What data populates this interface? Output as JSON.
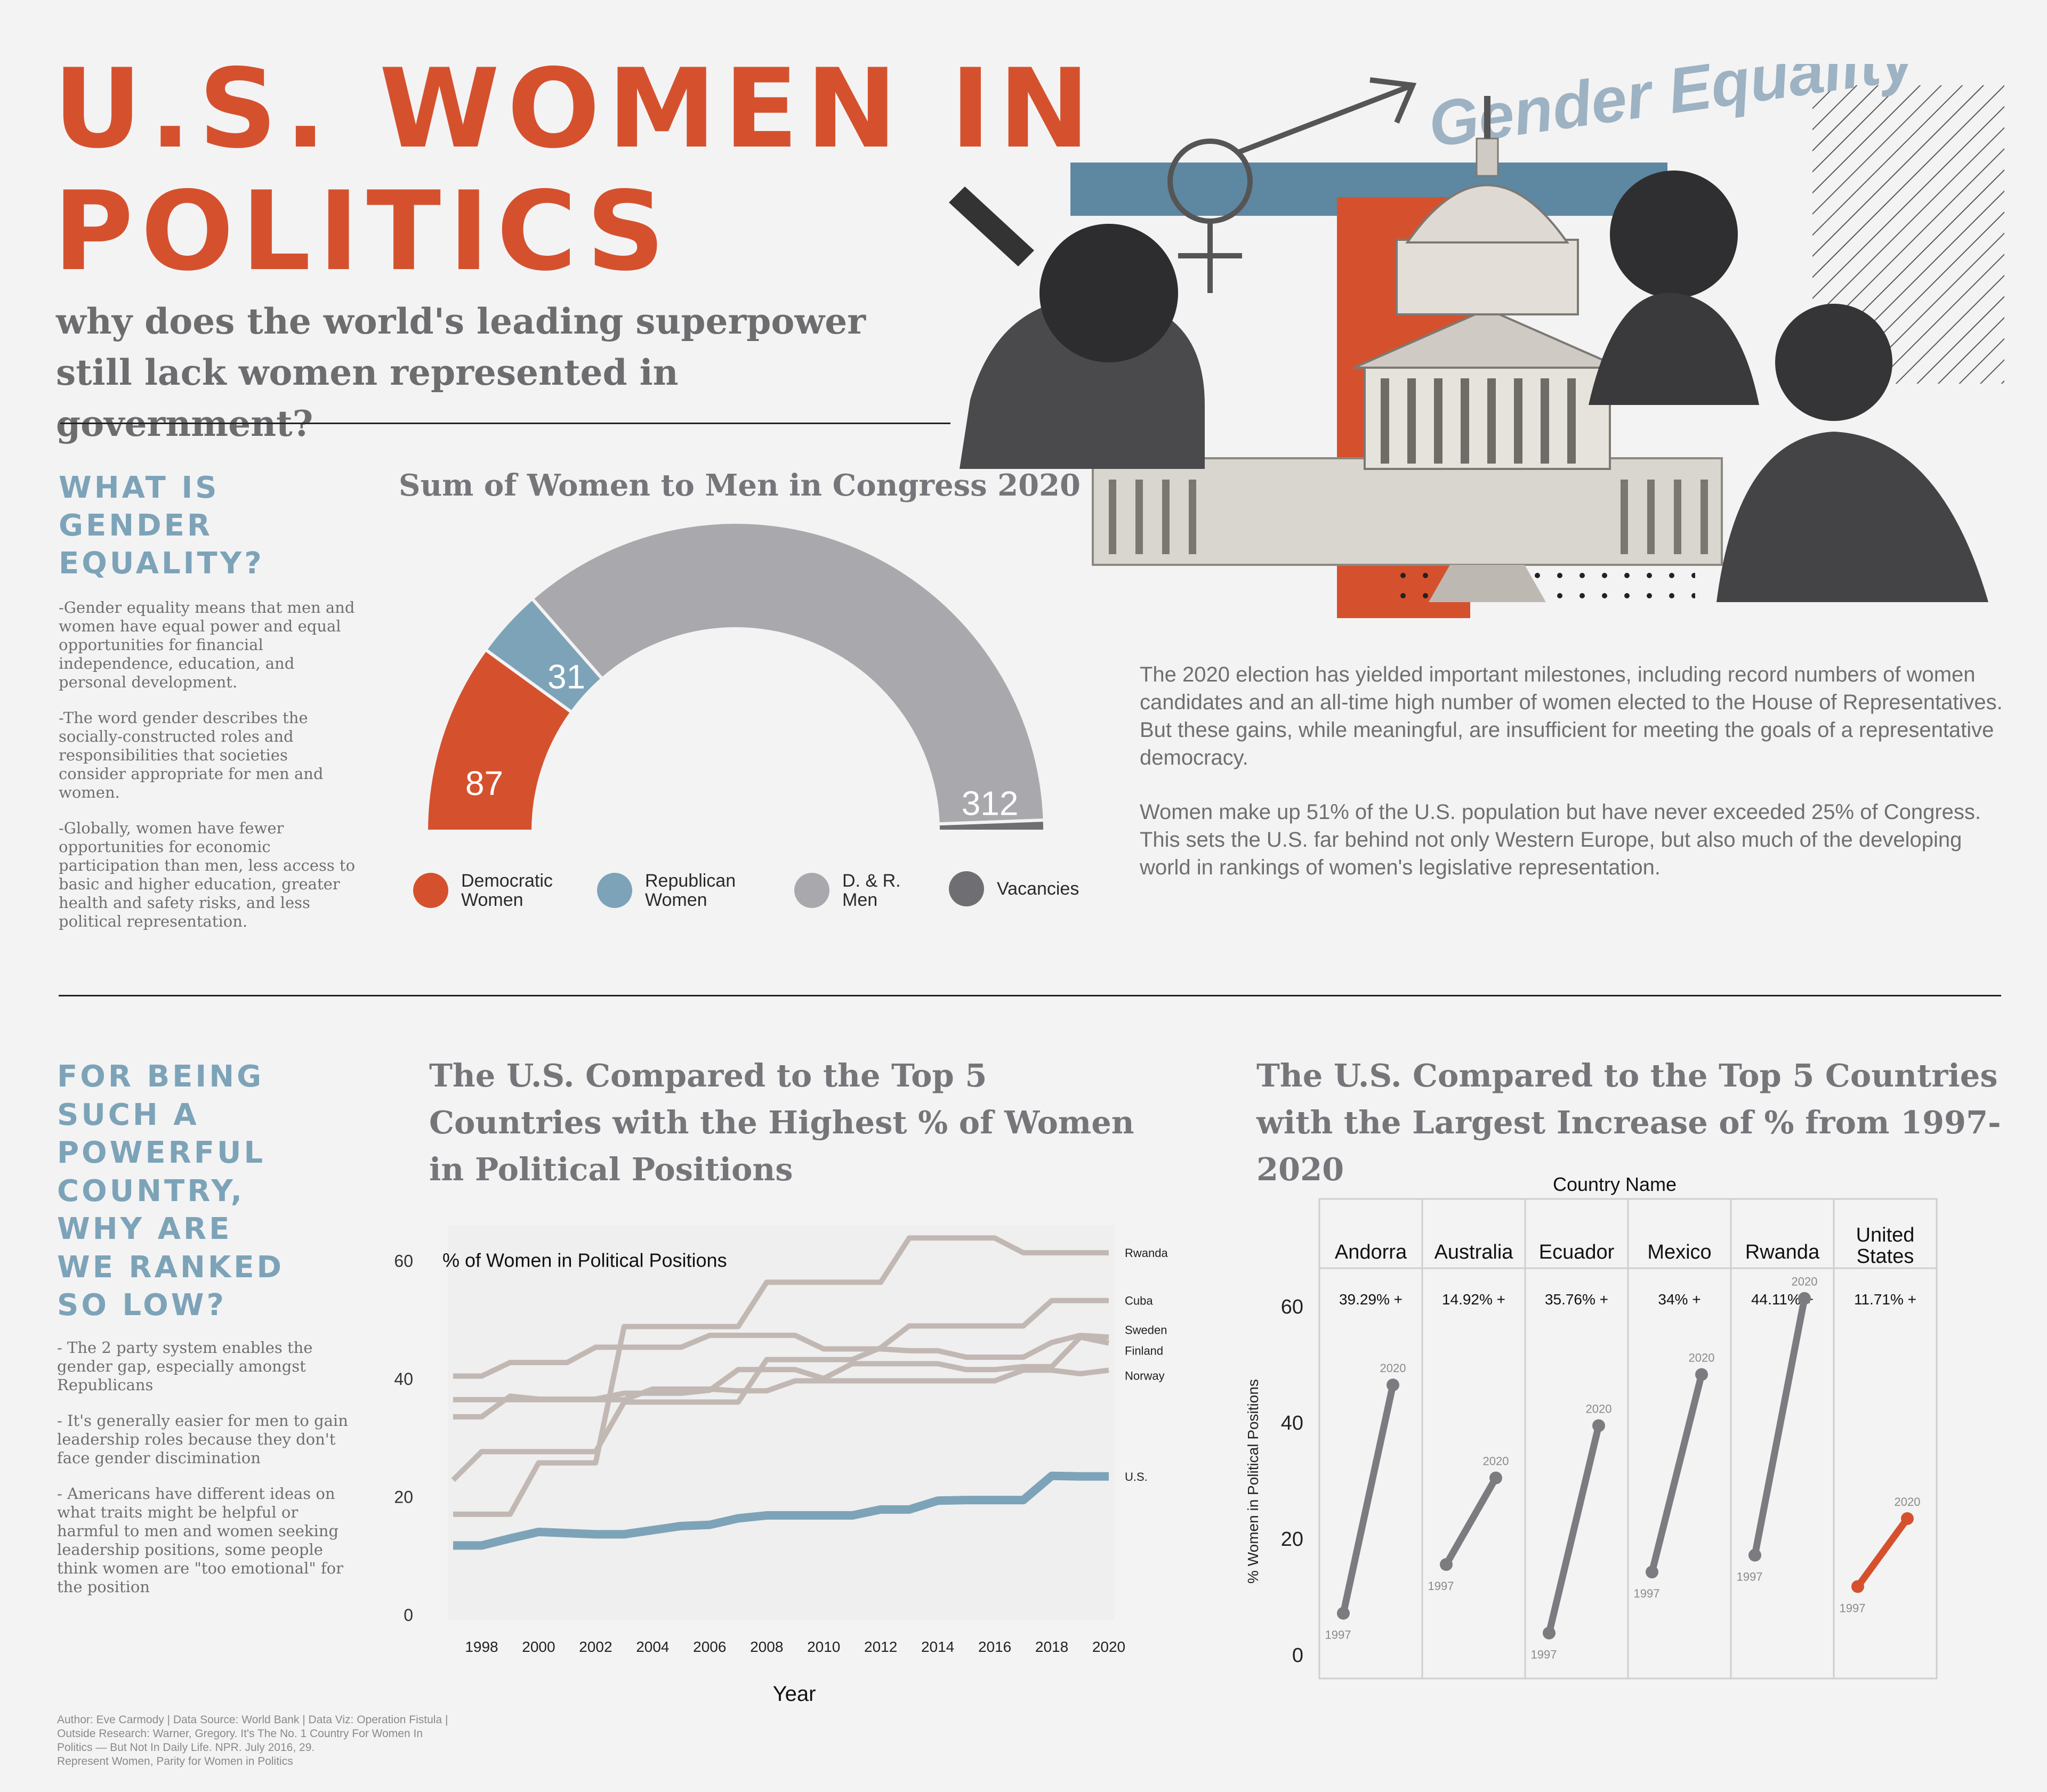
{
  "header": {
    "title_line1": "U.S. WOMEN IN",
    "title_line2": "POLITICS",
    "subtitle": "why does the world's leading superpower still lack women represented in government?"
  },
  "colors": {
    "accent_red": "#d5512e",
    "accent_blue": "#7da3b8",
    "men_gray": "#a9a9ad",
    "vacancy_gray": "#6f6f73",
    "other_countries": "#c2b8b3",
    "us_line": "#7da3b8"
  },
  "collage": {
    "script_text": "Gender Equality",
    "icons": [
      "gender-symbol-icon",
      "capitol-building-icon",
      "portrait-photo-icon"
    ]
  },
  "gender_section": {
    "heading": "WHAT IS\nGENDER\nEQUALITY?",
    "paragraphs": [
      "-Gender equality means that men and women have equal power and equal opportunities for financial independence, education, and personal development.",
      "-The word gender describes the socially-constructed roles and responsibilities that societies consider appropriate for men and women.",
      "-Globally, women have fewer opportunities for economic participation than men, less access to basic and higher education, greater health and safety risks, and less political representation."
    ]
  },
  "congress_chart": {
    "title": "Sum of Women to Men in Congress 2020",
    "legend": [
      {
        "label": "Democratic Women",
        "color": "#d5512e"
      },
      {
        "label": "Republican Women",
        "color": "#7da3b8"
      },
      {
        "label": "D. & R. Men",
        "color": "#a9a9ad"
      },
      {
        "label": "Vacancies",
        "color": "#6f6f73"
      }
    ]
  },
  "intro_text": [
    "The 2020 election has yielded important milestones, including record numbers of women candidates and an all-time high number of women elected to the House of Representatives. But these gains, while meaningful, are insufficient for meeting the goals of a representative democracy.",
    "Women make up 51% of the U.S. population but have never exceeded 25% of Congress. This sets the U.S. far behind not only Western Europe, but also much of the developing world in rankings of women's legislative representation."
  ],
  "ranked_section": {
    "heading": "FOR BEING\nSUCH A\nPOWERFUL\nCOUNTRY,\nWHY ARE\nWE RANKED\nSO LOW?",
    "paragraphs": [
      "- The 2 party system enables the gender gap, especially amongst Republicans",
      "- It's generally easier for men to gain leadership roles because they don't face gender discimination",
      "- Americans have different ideas on what traits might be helpful or harmful to men and women seeking leadership positions, some people think women are \"too emotional\" for the position"
    ]
  },
  "line_chart_title": "The U.S. Compared to the Top 5 Countries with the Highest % of Women in Political Positions",
  "slope_chart_title": "The U.S. Compared to the Top 5 Countries with the Largest Increase of % from 1997-2020",
  "footer": {
    "line1": "Author: Eve Carmody | Data Source: World Bank | Data Viz: Operation Fistula |",
    "line2": "Outside Research: Warner, Gregory. It's The No. 1 Country For Women In",
    "line3": "Politics — But Not In Daily Life. NPR. July 2016, 29.",
    "line4": "Represent Women, Parity for Women in Politics"
  },
  "chart_data": [
    {
      "type": "pie",
      "variant": "half-donut",
      "title": "Sum of Women to Men in Congress 2020",
      "categories": [
        "Democratic Women",
        "Republican Women",
        "D. & R. Men",
        "Vacancies"
      ],
      "values": [
        87,
        31,
        312,
        5
      ],
      "labels": [
        "87",
        "31",
        "312",
        ""
      ]
    },
    {
      "type": "line",
      "title": "The U.S. Compared to the Top 5 Countries with the Highest % of Women in Political Positions",
      "inner_label": "% of Women in Political Positions",
      "xlabel": "Year",
      "ylabel": "",
      "xlim": [
        1997,
        2020
      ],
      "ylim": [
        0,
        65
      ],
      "xticks": [
        "1998",
        "2000",
        "2002",
        "2004",
        "2006",
        "2008",
        "2010",
        "2012",
        "2014",
        "2016",
        "2018",
        "2020"
      ],
      "yticks": [
        "0",
        "20",
        "40",
        "60"
      ],
      "x": [
        1997,
        1998,
        1999,
        2000,
        2001,
        2002,
        2003,
        2004,
        2005,
        2006,
        2007,
        2008,
        2009,
        2010,
        2011,
        2012,
        2013,
        2014,
        2015,
        2016,
        2017,
        2018,
        2019,
        2020
      ],
      "series": [
        {
          "name": "Rwanda",
          "values": [
            17,
            17,
            17,
            25.7,
            25.7,
            25.7,
            48.8,
            48.8,
            48.8,
            48.8,
            48.8,
            56.3,
            56.3,
            56.3,
            56.3,
            56.3,
            63.8,
            63.8,
            63.8,
            63.8,
            61.3,
            61.3,
            61.3,
            61.3
          ]
        },
        {
          "name": "Cuba",
          "values": [
            22.8,
            27.6,
            27.6,
            27.6,
            27.6,
            27.6,
            36,
            36,
            36,
            36,
            36,
            43.2,
            43.2,
            43.2,
            43.2,
            45.2,
            48.9,
            48.9,
            48.9,
            48.9,
            48.9,
            53.2,
            53.2,
            53.2
          ]
        },
        {
          "name": "Sweden",
          "values": [
            40.4,
            40.4,
            42.7,
            42.7,
            42.7,
            45.3,
            45.3,
            45.3,
            45.3,
            47.3,
            47.3,
            47.3,
            47.3,
            45,
            45,
            45,
            44.7,
            44.7,
            43.6,
            43.6,
            43.6,
            46.1,
            47.3,
            47.0
          ]
        },
        {
          "name": "Finland",
          "values": [
            33.5,
            33.5,
            37,
            36.5,
            36.5,
            36.5,
            37.5,
            37.5,
            37.5,
            38,
            41.5,
            41.5,
            41.5,
            40,
            42.5,
            42.5,
            42.5,
            42.5,
            41.5,
            41.5,
            42,
            42,
            47,
            46.0
          ]
        },
        {
          "name": "Norway",
          "values": [
            36.4,
            36.4,
            36.4,
            36.4,
            36.4,
            36.4,
            36.4,
            38.2,
            38.2,
            38.2,
            37.9,
            37.9,
            39.6,
            39.6,
            39.6,
            39.6,
            39.6,
            39.6,
            39.6,
            39.6,
            41.4,
            41.4,
            40.8,
            41.4
          ]
        },
        {
          "name": "U.S.",
          "values": [
            11.7,
            11.7,
            12.9,
            14.0,
            13.8,
            13.6,
            13.6,
            14.3,
            15.0,
            15.2,
            16.3,
            16.8,
            16.8,
            16.8,
            16.8,
            17.8,
            17.8,
            19.3,
            19.4,
            19.4,
            19.4,
            23.5,
            23.4,
            23.4
          ]
        }
      ]
    },
    {
      "type": "scatter",
      "variant": "slope",
      "title": "The U.S. Compared to the Top 5 Countries with the Largest Increase of % from 1997-2020",
      "header": "Country Name",
      "ylabel": "% Women in Political Positions",
      "ylim": [
        0,
        61
      ],
      "yticks": [
        "0",
        "20",
        "40",
        "60"
      ],
      "categories": [
        "Andorra",
        "Australia",
        "Ecuador",
        "Mexico",
        "Rwanda",
        "United States"
      ],
      "changes": [
        "39.29% +",
        "14.92% +",
        "35.76% +",
        "34% +",
        "44.11% +",
        "11.71% +"
      ],
      "start_label": "1997",
      "end_label": "2020",
      "values_1997": [
        7.1,
        15.5,
        3.7,
        14.2,
        17.1,
        11.7
      ],
      "values_2020": [
        46.4,
        30.4,
        39.4,
        48.2,
        61.3,
        23.4
      ]
    }
  ]
}
